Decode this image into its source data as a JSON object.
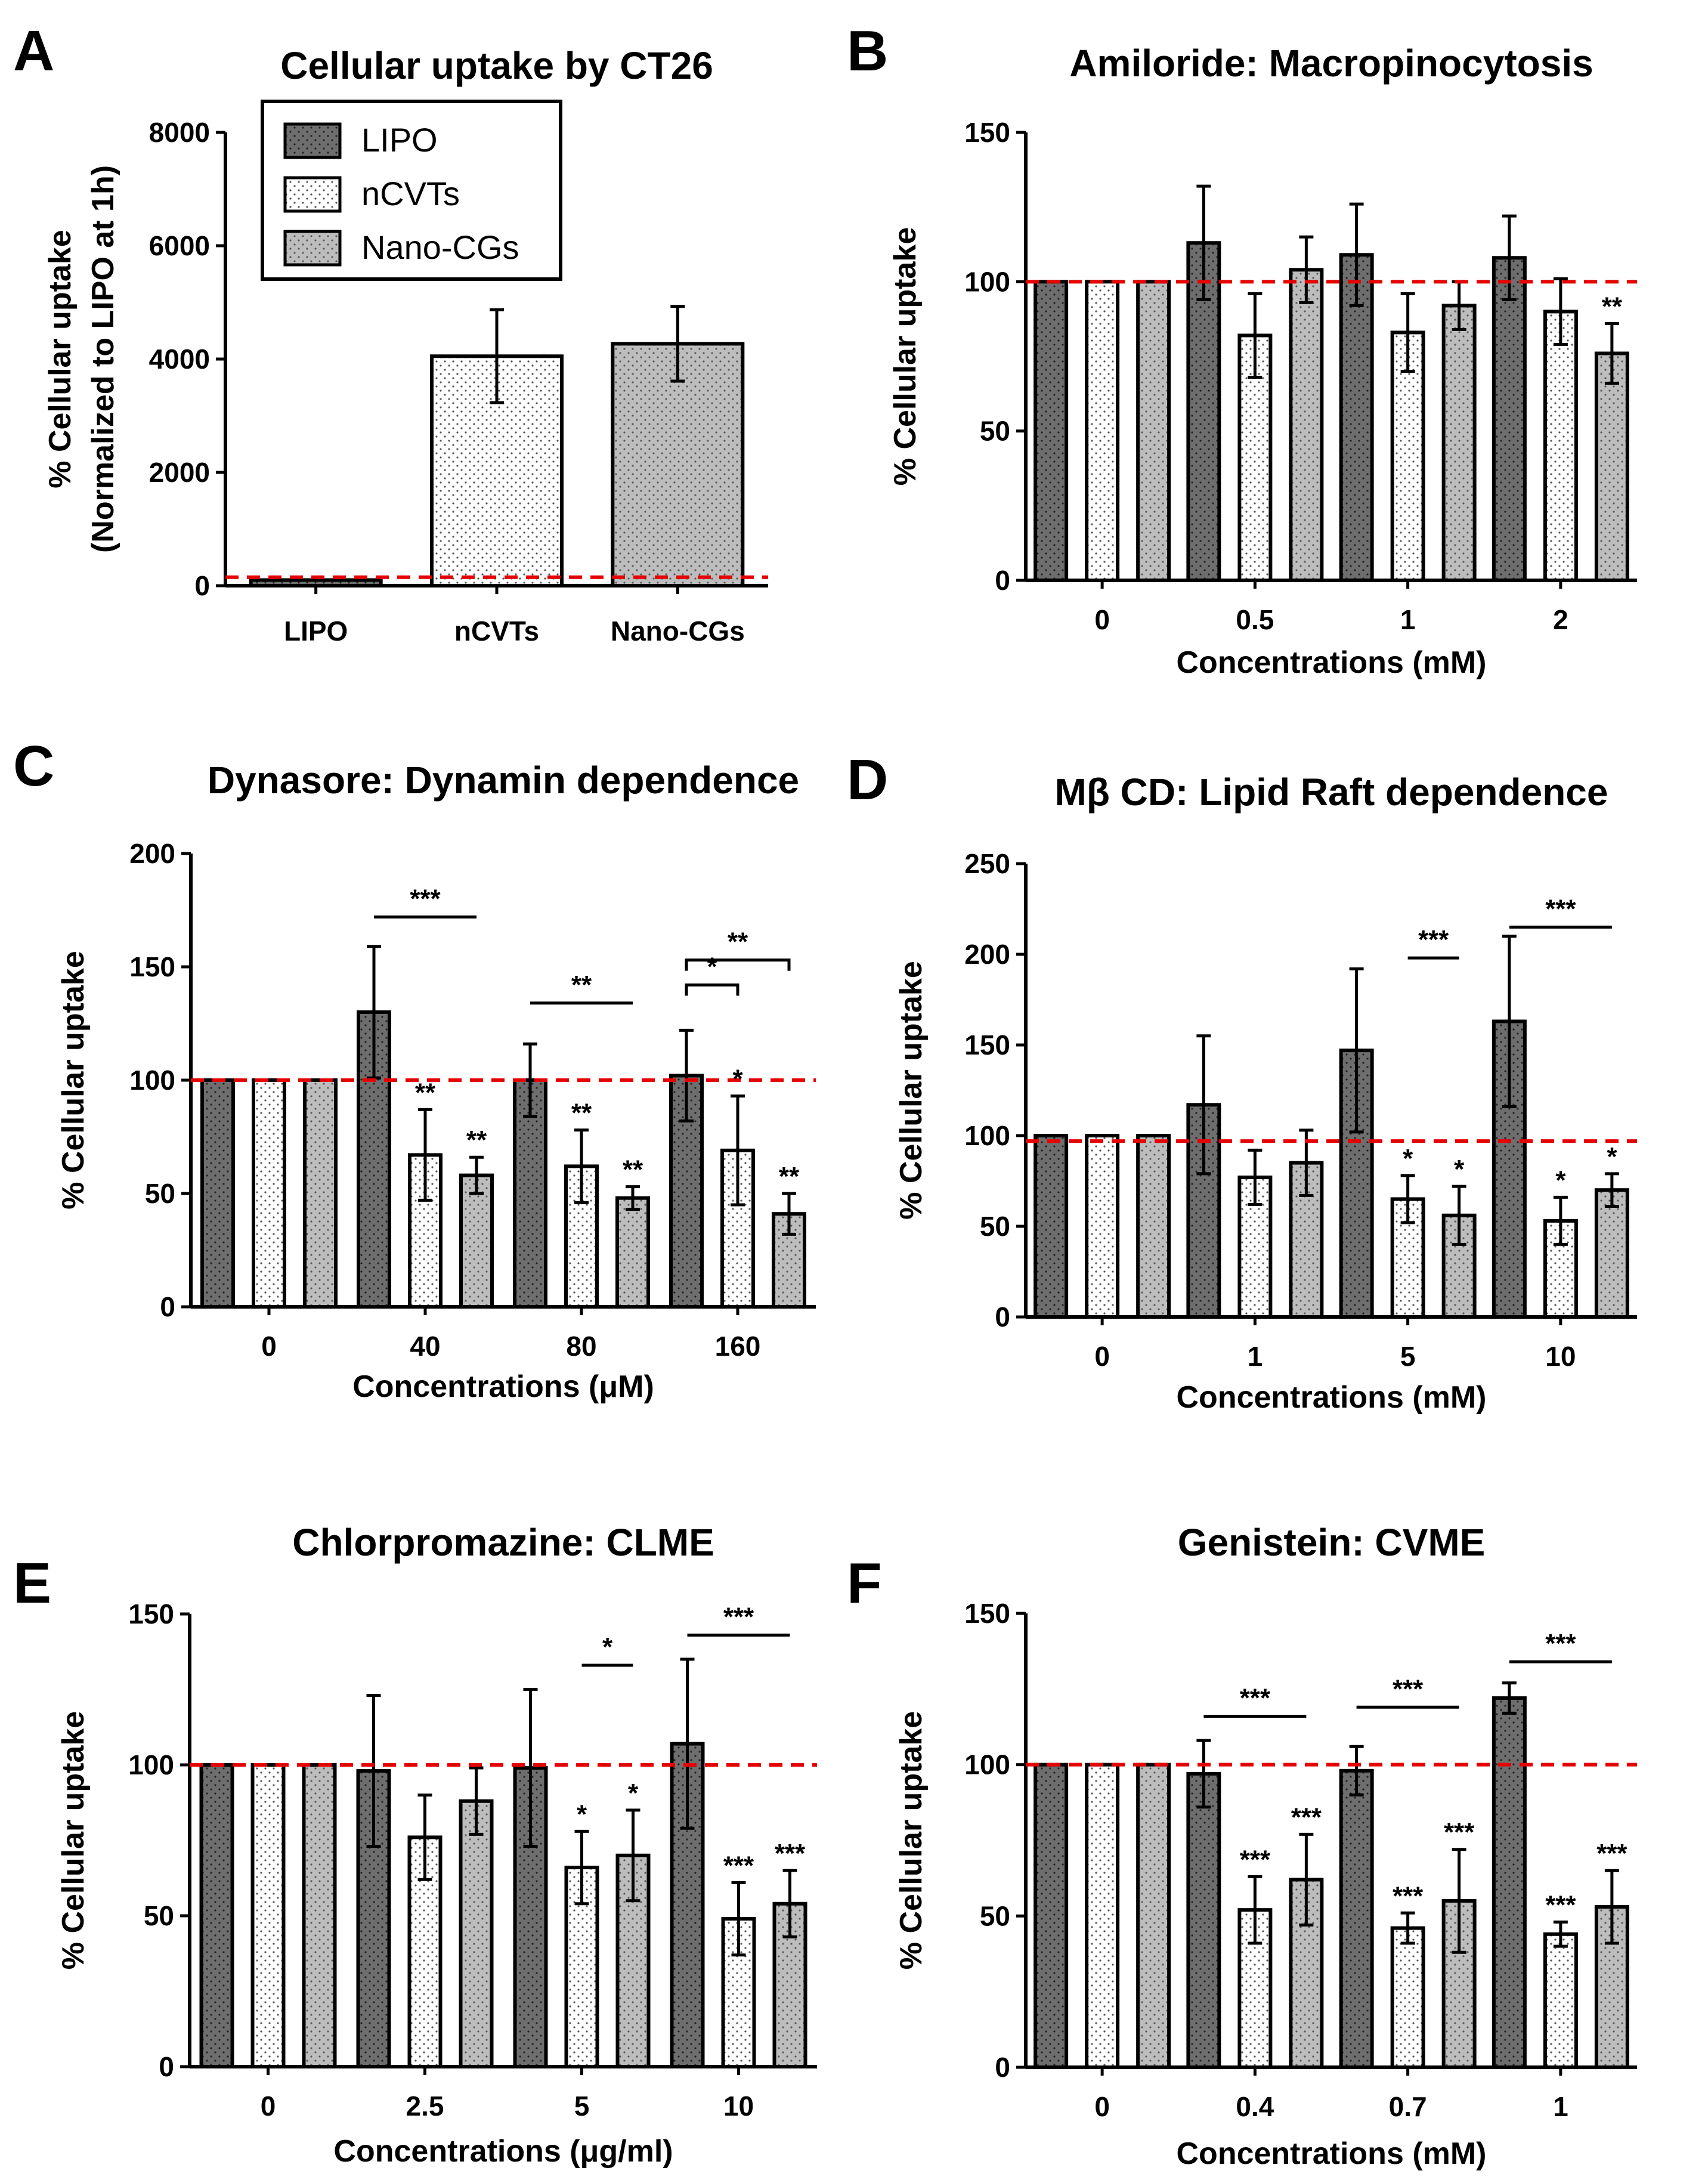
{
  "figure": {
    "legend": {
      "entries": [
        "LIPO",
        "nCVTs",
        "Nano-CGs"
      ]
    },
    "colors": {
      "lipo": "#6e6e6e",
      "ncvts": "#ffffff",
      "nanocgs": "#bdbdbd",
      "reference_line": "#e60000",
      "ink": "#000000"
    }
  },
  "chart_data": [
    {
      "id": "A",
      "letter": "A",
      "type": "bar",
      "title": "Cellular uptake by CT26",
      "ylabel_line1": "% Cellular uptake",
      "ylabel_line2": "(Normalized to LIPO at 1h)",
      "xlabel": "",
      "categories": [
        "LIPO",
        "nCVTs",
        "Nano-CGs"
      ],
      "values": [
        100,
        4050,
        4270
      ],
      "errors": [
        20,
        820,
        660
      ],
      "ylim": [
        0,
        8000
      ],
      "yticks": [
        "0",
        "2000",
        "4000",
        "6000",
        "8000"
      ],
      "reference_line": 150
    },
    {
      "id": "B",
      "letter": "B",
      "type": "bar",
      "title": "Amiloride: Macropinocytosis",
      "ylabel": "% Cellular uptake",
      "xlabel": "Concentrations (mM)",
      "categories": [
        "0",
        "0.5",
        "1",
        "2"
      ],
      "series": [
        {
          "name": "LIPO",
          "values": [
            100,
            113,
            109,
            108
          ],
          "errors": [
            0,
            19,
            17,
            14
          ]
        },
        {
          "name": "nCVTs",
          "values": [
            100,
            82,
            83,
            90
          ],
          "errors": [
            0,
            14,
            13,
            11
          ]
        },
        {
          "name": "Nano-CGs",
          "values": [
            100,
            104,
            92,
            76
          ],
          "errors": [
            0,
            11,
            8,
            10
          ]
        }
      ],
      "ylim": [
        0,
        150
      ],
      "yticks": [
        "0",
        "50",
        "100",
        "150"
      ],
      "reference_line": 100,
      "annotations": [
        {
          "text": "**",
          "category": 3,
          "series": 2
        }
      ],
      "brackets": []
    },
    {
      "id": "C",
      "letter": "C",
      "type": "bar",
      "title": "Dynasore: Dynamin dependence",
      "ylabel": "% Cellular uptake",
      "xlabel": "Concentrations (μM)",
      "categories": [
        "0",
        "40",
        "80",
        "160"
      ],
      "series": [
        {
          "name": "LIPO",
          "values": [
            100,
            130,
            100,
            102
          ],
          "errors": [
            0,
            29,
            16,
            20
          ]
        },
        {
          "name": "nCVTs",
          "values": [
            100,
            67,
            62,
            69
          ],
          "errors": [
            0,
            20,
            16,
            24
          ]
        },
        {
          "name": "Nano-CGs",
          "values": [
            100,
            58,
            48,
            41
          ],
          "errors": [
            0,
            8,
            5,
            9
          ]
        }
      ],
      "ylim": [
        0,
        200
      ],
      "yticks": [
        "0",
        "50",
        "100",
        "150",
        "200"
      ],
      "reference_line": 100,
      "annotations": [
        {
          "text": "**",
          "category": 1,
          "series": 1
        },
        {
          "text": "**",
          "category": 1,
          "series": 2
        },
        {
          "text": "**",
          "category": 2,
          "series": 1
        },
        {
          "text": "**",
          "category": 2,
          "series": 2
        },
        {
          "text": "*",
          "category": 3,
          "series": 1
        },
        {
          "text": "**",
          "category": 3,
          "series": 2
        }
      ],
      "brackets": [
        {
          "category": 1,
          "from": 0,
          "to": 2,
          "level": 172,
          "text": "***",
          "style": "line"
        },
        {
          "category": 2,
          "from": 0,
          "to": 2,
          "level": 134,
          "text": "**",
          "style": "line"
        },
        {
          "category": 3,
          "from": 0,
          "to": 1,
          "level": 142,
          "text": "*",
          "style": "bracket"
        },
        {
          "category": 3,
          "from": 0,
          "to": 2,
          "level": 153,
          "text": "**",
          "style": "bracket"
        }
      ]
    },
    {
      "id": "D",
      "letter": "D",
      "type": "bar",
      "title": "Mβ CD: Lipid Raft dependence",
      "ylabel": "% Cellular uptake",
      "xlabel": "Concentrations (mM)",
      "categories": [
        "0",
        "1",
        "5",
        "10"
      ],
      "series": [
        {
          "name": "LIPO",
          "values": [
            100,
            117,
            147,
            163
          ],
          "errors": [
            0,
            38,
            45,
            47
          ]
        },
        {
          "name": "nCVTs",
          "values": [
            100,
            77,
            65,
            53
          ],
          "errors": [
            0,
            15,
            13,
            13
          ]
        },
        {
          "name": "Nano-CGs",
          "values": [
            100,
            85,
            56,
            70
          ],
          "errors": [
            0,
            18,
            16,
            9
          ]
        }
      ],
      "ylim": [
        0,
        250
      ],
      "yticks": [
        "0",
        "50",
        "100",
        "150",
        "200",
        "250"
      ],
      "reference_line": 97,
      "annotations": [
        {
          "text": "*",
          "category": 2,
          "series": 1
        },
        {
          "text": "*",
          "category": 2,
          "series": 2
        },
        {
          "text": "*",
          "category": 3,
          "series": 1
        },
        {
          "text": "*",
          "category": 3,
          "series": 2
        }
      ],
      "brackets": [
        {
          "category": 2,
          "from": 1,
          "to": 2,
          "level": 198,
          "text": "***",
          "style": "line"
        },
        {
          "category": 3,
          "from": 0,
          "to": 2,
          "level": 215,
          "text": "***",
          "style": "line"
        }
      ]
    },
    {
      "id": "E",
      "letter": "E",
      "type": "bar",
      "title": "Chlorpromazine: CLME",
      "ylabel": "% Cellular uptake",
      "xlabel": "Concentrations (μg/ml)",
      "categories": [
        "0",
        "2.5",
        "5",
        "10"
      ],
      "series": [
        {
          "name": "LIPO",
          "values": [
            100,
            98,
            99,
            107
          ],
          "errors": [
            0,
            25,
            26,
            28
          ]
        },
        {
          "name": "nCVTs",
          "values": [
            100,
            76,
            66,
            49
          ],
          "errors": [
            0,
            14,
            12,
            12
          ]
        },
        {
          "name": "Nano-CGs",
          "values": [
            100,
            88,
            70,
            54
          ],
          "errors": [
            0,
            11,
            15,
            11
          ]
        }
      ],
      "ylim": [
        0,
        150
      ],
      "yticks": [
        "0",
        "50",
        "100",
        "150"
      ],
      "reference_line": 100,
      "annotations": [
        {
          "text": "*",
          "category": 2,
          "series": 1
        },
        {
          "text": "*",
          "category": 2,
          "series": 2
        },
        {
          "text": "***",
          "category": 3,
          "series": 1
        },
        {
          "text": "***",
          "category": 3,
          "series": 2
        }
      ],
      "brackets": [
        {
          "category": 2,
          "from": 1,
          "to": 2,
          "level": 133,
          "text": "*",
          "style": "line"
        },
        {
          "category": 3,
          "from": 0,
          "to": 2,
          "level": 143,
          "text": "***",
          "style": "line"
        }
      ]
    },
    {
      "id": "F",
      "letter": "F",
      "type": "bar",
      "title": "Genistein: CVME",
      "ylabel": "% Cellular uptake",
      "xlabel": "Concentrations (mM)",
      "categories": [
        "0",
        "0.4",
        "0.7",
        "1"
      ],
      "series": [
        {
          "name": "LIPO",
          "values": [
            100,
            97,
            98,
            122
          ],
          "errors": [
            0,
            11,
            8,
            5
          ]
        },
        {
          "name": "nCVTs",
          "values": [
            100,
            52,
            46,
            44
          ],
          "errors": [
            0,
            11,
            5,
            4
          ]
        },
        {
          "name": "Nano-CGs",
          "values": [
            100,
            62,
            55,
            53
          ],
          "errors": [
            0,
            15,
            17,
            12
          ]
        }
      ],
      "ylim": [
        0,
        150
      ],
      "yticks": [
        "0",
        "50",
        "100",
        "150"
      ],
      "reference_line": 100,
      "annotations": [
        {
          "text": "***",
          "category": 1,
          "series": 1
        },
        {
          "text": "***",
          "category": 1,
          "series": 2
        },
        {
          "text": "***",
          "category": 2,
          "series": 1
        },
        {
          "text": "***",
          "category": 2,
          "series": 2
        },
        {
          "text": "***",
          "category": 3,
          "series": 1
        },
        {
          "text": "***",
          "category": 3,
          "series": 2
        }
      ],
      "brackets": [
        {
          "category": 1,
          "from": 0,
          "to": 2,
          "level": 116,
          "text": "***",
          "style": "line"
        },
        {
          "category": 2,
          "from": 0,
          "to": 2,
          "level": 119,
          "text": "***",
          "style": "line"
        },
        {
          "category": 3,
          "from": 0,
          "to": 2,
          "level": 134,
          "text": "***",
          "style": "line"
        }
      ]
    }
  ]
}
